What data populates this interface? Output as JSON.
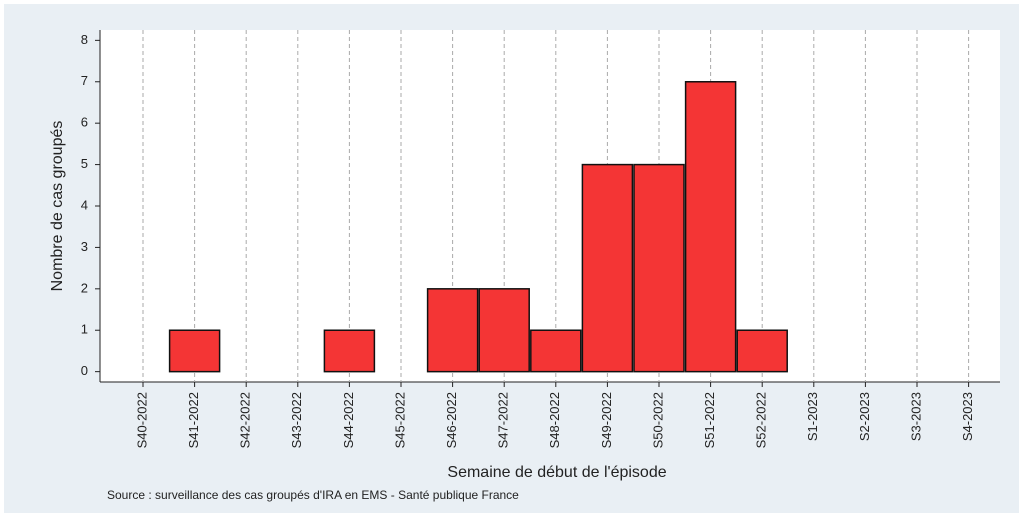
{
  "chart_data": {
    "type": "bar",
    "x_label": "Semaine de début de l'épisode",
    "y_label": "Nombre de cas groupés",
    "source": "Source : surveillance des cas groupés d'IRA en EMS - Santé publique France",
    "categories": [
      "S40-2022",
      "S41-2022",
      "S42-2022",
      "S43-2022",
      "S44-2022",
      "S45-2022",
      "S46-2022",
      "S47-2022",
      "S48-2022",
      "S49-2022",
      "S50-2022",
      "S51-2022",
      "S52-2022",
      "S1-2023",
      "S2-2023",
      "S3-2023",
      "S4-2023"
    ],
    "values": [
      0,
      1,
      0,
      0,
      1,
      0,
      2,
      2,
      1,
      5,
      5,
      7,
      1,
      0,
      0,
      0,
      0
    ],
    "color": "#f43535",
    "ylim": [
      -0.25,
      8.25
    ],
    "yticks": [
      0,
      1,
      2,
      3,
      4,
      5,
      6,
      7,
      8
    ],
    "grid": true
  }
}
